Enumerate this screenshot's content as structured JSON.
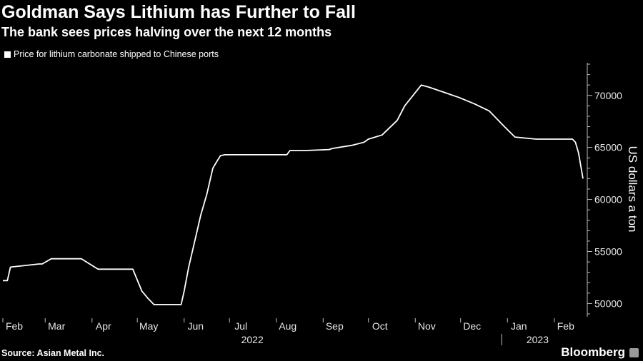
{
  "header": {
    "title": "Goldman Says Lithium has Further to Fall",
    "subtitle": "The bank sees prices halving over the next 12 months"
  },
  "footer": {
    "source": "Source: Asian Metal Inc.",
    "brand": "Bloomberg"
  },
  "icons": {
    "brand_icon": "bloomberg-terminal-icon"
  },
  "colors": {
    "background": "#000000",
    "series": "#ffffff",
    "axis": "#bdbdbd"
  },
  "chart_data": {
    "type": "line",
    "title": "Goldman Says Lithium has Further to Fall",
    "subtitle": "The bank sees prices halving over the next 12 months",
    "xlabel": "",
    "ylabel": "US dollars a ton",
    "ylim": [
      49000,
      73000
    ],
    "yticks": [
      50000,
      55000,
      60000,
      65000,
      70000
    ],
    "ytick_labels": [
      "50000",
      "55000",
      "60000",
      "65000",
      "70000"
    ],
    "y_axis_position": "right",
    "grid": false,
    "legend_position": "top-left",
    "x_tick_labels": [
      "Feb",
      "Mar",
      "Apr",
      "May",
      "Jun",
      "Jul",
      "Aug",
      "Sep",
      "Oct",
      "Nov",
      "Dec",
      "Jan",
      "Feb"
    ],
    "year_labels": [
      "2022",
      "2023"
    ],
    "series": [
      {
        "name": "Price for lithium carbonate shipped to Chinese ports",
        "x": [
          "2022-02-01",
          "2022-02-04",
          "2022-02-06",
          "2022-02-25",
          "2022-02-27",
          "2022-03-05",
          "2022-03-15",
          "2022-03-25",
          "2022-04-05",
          "2022-04-12",
          "2022-04-18",
          "2022-04-28",
          "2022-05-04",
          "2022-05-08",
          "2022-05-12",
          "2022-05-22",
          "2022-05-30",
          "2022-06-01",
          "2022-06-04",
          "2022-06-08",
          "2022-06-12",
          "2022-06-16",
          "2022-06-20",
          "2022-06-22",
          "2022-06-25",
          "2022-06-28",
          "2022-07-15",
          "2022-08-08",
          "2022-08-10",
          "2022-08-20",
          "2022-09-05",
          "2022-09-07",
          "2022-09-20",
          "2022-09-28",
          "2022-10-01",
          "2022-10-10",
          "2022-10-20",
          "2022-10-25",
          "2022-11-05",
          "2022-11-10",
          "2022-11-20",
          "2022-11-30",
          "2022-12-10",
          "2022-12-20",
          "2022-12-30",
          "2023-01-06",
          "2023-01-20",
          "2023-02-01",
          "2023-02-10",
          "2023-02-13",
          "2023-02-15",
          "2023-02-17",
          "2023-02-20"
        ],
        "values": [
          52200,
          52200,
          53500,
          53800,
          53800,
          54300,
          54300,
          54300,
          53300,
          53300,
          53300,
          53300,
          51200,
          50500,
          49900,
          49900,
          49900,
          51200,
          53500,
          56000,
          58500,
          60500,
          63000,
          63500,
          64200,
          64300,
          64300,
          64300,
          64700,
          64700,
          64800,
          64900,
          65200,
          65500,
          65800,
          66200,
          67600,
          69000,
          71000,
          70800,
          70300,
          69800,
          69200,
          68500,
          67000,
          66000,
          65800,
          65800,
          65800,
          65800,
          65500,
          64500,
          62000
        ]
      }
    ]
  }
}
